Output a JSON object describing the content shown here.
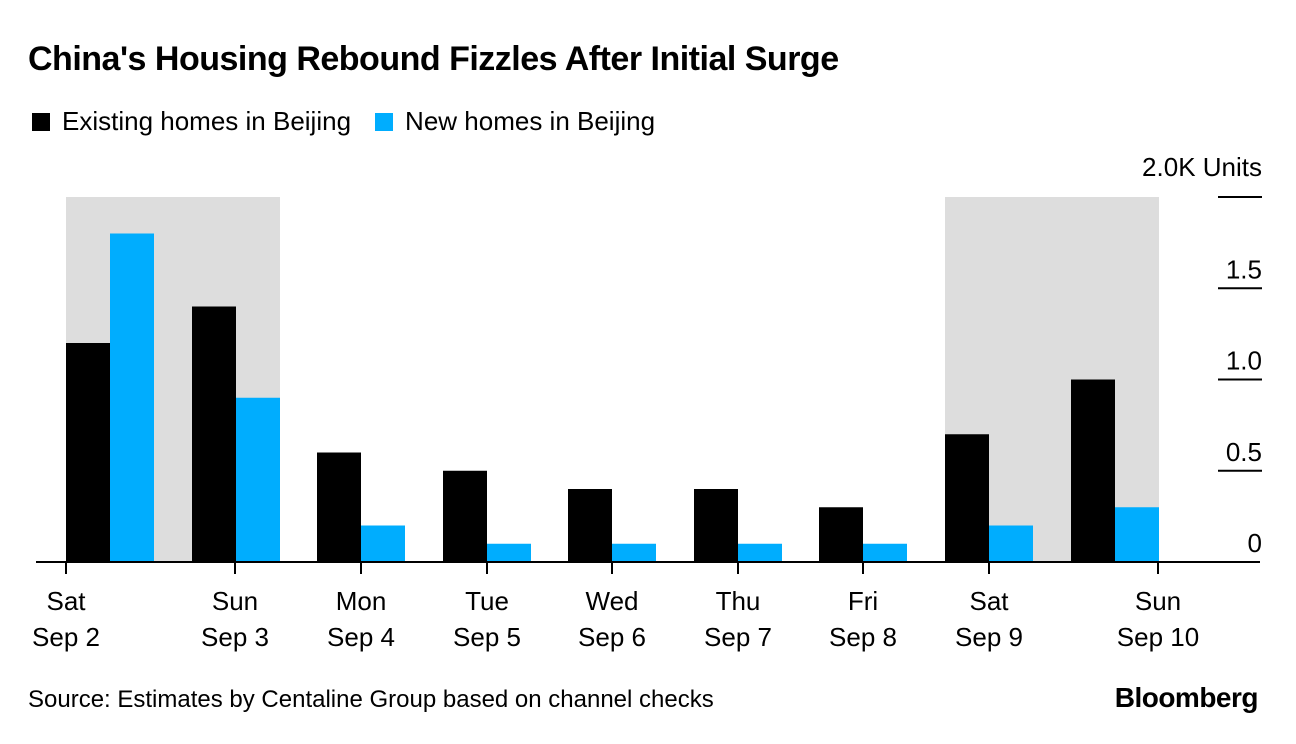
{
  "title": "China's Housing Rebound Fizzles After Initial Surge",
  "source": "Source: Estimates by Centaline Group based on channel checks",
  "brand": "Bloomberg",
  "chart_data": {
    "type": "bar",
    "title": "China's Housing Rebound Fizzles After Initial Surge",
    "unit_label": "2.0K Units",
    "categories": [
      {
        "weekday": "Sat",
        "date": "Sep 2"
      },
      {
        "weekday": "Sun",
        "date": "Sep 3"
      },
      {
        "weekday": "Mon",
        "date": "Sep 4"
      },
      {
        "weekday": "Tue",
        "date": "Sep 5"
      },
      {
        "weekday": "Wed",
        "date": "Sep 6"
      },
      {
        "weekday": "Thu",
        "date": "Sep 7"
      },
      {
        "weekday": "Fri",
        "date": "Sep 8"
      },
      {
        "weekday": "Sat",
        "date": "Sep 9"
      },
      {
        "weekday": "Sun",
        "date": "Sep 10"
      }
    ],
    "series": [
      {
        "name": "Existing homes in Beijing",
        "color": "#000000",
        "values": [
          1.2,
          1.4,
          0.6,
          0.5,
          0.4,
          0.4,
          0.3,
          0.7,
          1.0
        ]
      },
      {
        "name": "New homes in Beijing",
        "color": "#00adfe",
        "values": [
          1.8,
          0.9,
          0.2,
          0.1,
          0.1,
          0.1,
          0.1,
          0.2,
          0.3
        ]
      }
    ],
    "y_ticks": [
      "2.0K Units",
      "1.5",
      "1.0",
      "0.5",
      "0"
    ],
    "y_tick_values": [
      2.0,
      1.5,
      1.0,
      0.5,
      0
    ],
    "ylim": [
      0,
      2.0
    ],
    "weekend_shading_color": "#dddddd",
    "weekend_shading": [
      [
        0,
        1
      ],
      [
        7,
        8
      ]
    ],
    "legend_position": "top-left",
    "grid": false
  }
}
